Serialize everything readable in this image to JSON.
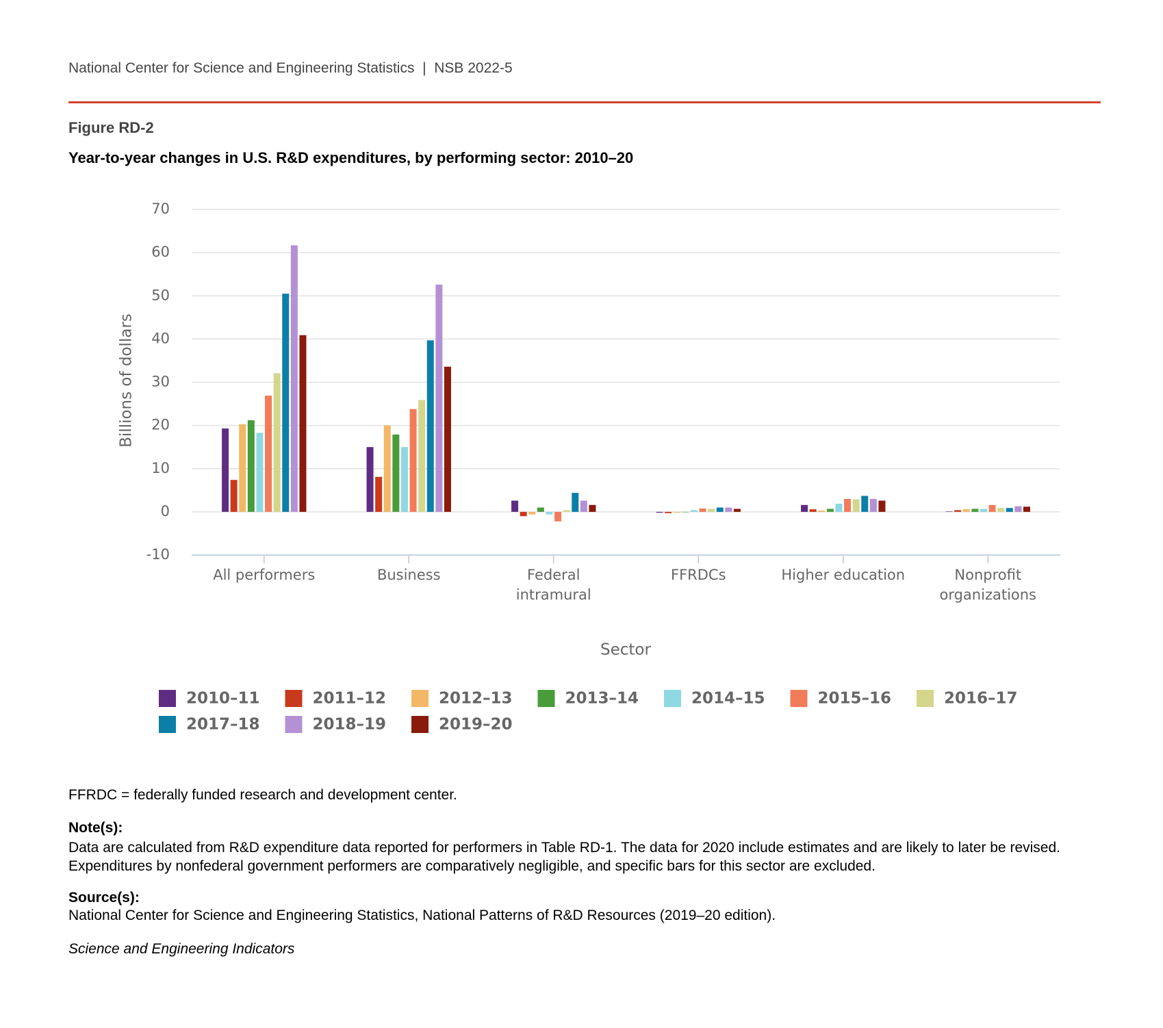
{
  "header": {
    "source_line": "National Center for Science and Engineering Statistics  |  NSB 2022-5",
    "figure_label": "Figure RD-2"
  },
  "chart_data": {
    "type": "bar",
    "title": "Year-to-year changes in U.S. R&D expenditures, by performing sector: 2010–20",
    "x_label": "Sector",
    "y_label": "Billions of dollars",
    "categories": [
      "All performers",
      "Business",
      "Federal\nintramural",
      "FFRDCs",
      "Higher education",
      "Nonprofit\norganizations"
    ],
    "ylim": [
      -10,
      70
    ],
    "yticks": [
      -10,
      0,
      10,
      20,
      30,
      40,
      50,
      60,
      70
    ],
    "grid": true,
    "series": [
      {
        "name": "2010–11",
        "color": "#5e2d82",
        "values": [
          19.3,
          15.0,
          2.6,
          -0.2,
          1.6,
          0.1
        ]
      },
      {
        "name": "2011–12",
        "color": "#c83a1c",
        "values": [
          7.4,
          8.1,
          -1.0,
          -0.3,
          0.6,
          0.4
        ]
      },
      {
        "name": "2012–13",
        "color": "#f2b866",
        "values": [
          20.3,
          20.0,
          -0.6,
          -0.2,
          0.3,
          0.6
        ]
      },
      {
        "name": "2013–14",
        "color": "#489c3a",
        "values": [
          21.2,
          17.9,
          1.0,
          -0.1,
          0.7,
          0.7
        ]
      },
      {
        "name": "2014–15",
        "color": "#8ed8e2",
        "values": [
          18.3,
          15.0,
          -0.6,
          0.4,
          1.9,
          0.7
        ]
      },
      {
        "name": "2015–16",
        "color": "#f27c5a",
        "values": [
          26.9,
          23.8,
          -2.2,
          0.8,
          3.0,
          1.6
        ]
      },
      {
        "name": "2016–17",
        "color": "#d4d68c",
        "values": [
          32.1,
          25.9,
          0.4,
          0.7,
          2.9,
          0.9
        ]
      },
      {
        "name": "2017–18",
        "color": "#0b7fa8",
        "values": [
          50.5,
          39.7,
          4.4,
          1.0,
          3.7,
          0.9
        ]
      },
      {
        "name": "2018–19",
        "color": "#b491d4",
        "values": [
          61.7,
          52.6,
          2.6,
          1.0,
          3.0,
          1.3
        ]
      },
      {
        "name": "2019–20",
        "color": "#8a1a0c",
        "values": [
          40.9,
          33.6,
          1.6,
          0.7,
          2.6,
          1.2
        ]
      }
    ]
  },
  "footer": {
    "abbreviation": "FFRDC = federally funded research and development center.",
    "note_heading": "Note(s):",
    "note": "Data are calculated from R&D expenditure data reported for performers in Table RD-1. The data for 2020 include estimates and are likely to later be revised. Expenditures by nonfederal government performers are comparatively negligible, and specific bars for this sector are excluded.",
    "source_heading": "Source(s):",
    "source": "National Center for Science and Engineering Statistics, National Patterns of R&D Resources (2019–20 edition).",
    "publication": "Science and Engineering Indicators"
  }
}
